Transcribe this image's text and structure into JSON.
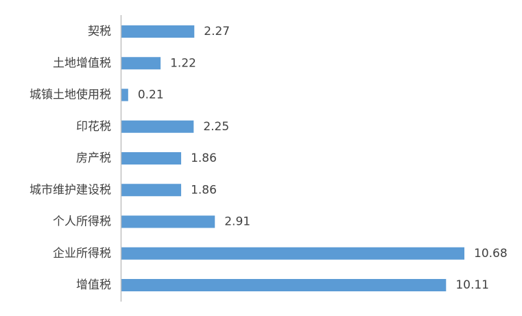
{
  "chart_data": {
    "type": "bar",
    "orientation": "horizontal",
    "categories": [
      "契税",
      "土地增值税",
      "城镇土地使用税",
      "印花税",
      "房产税",
      "城市维护建设税",
      "个人所得税",
      "企业所得税",
      "增值税"
    ],
    "series": [
      {
        "values": [
          2.27,
          1.22,
          0.21,
          2.25,
          1.86,
          1.86,
          2.91,
          10.68,
          10.11
        ],
        "labels": [
          "2.27",
          "1.22",
          "0.21",
          "2.25",
          "1.86",
          "1.86",
          "2.91",
          "10.68",
          "10.11"
        ]
      }
    ],
    "xlim": [
      0,
      10.68
    ],
    "grid": false,
    "legend": "none",
    "bar_color": "#5b9bd5",
    "axis_color": "#bfbfbf",
    "text_color": "#404040"
  }
}
